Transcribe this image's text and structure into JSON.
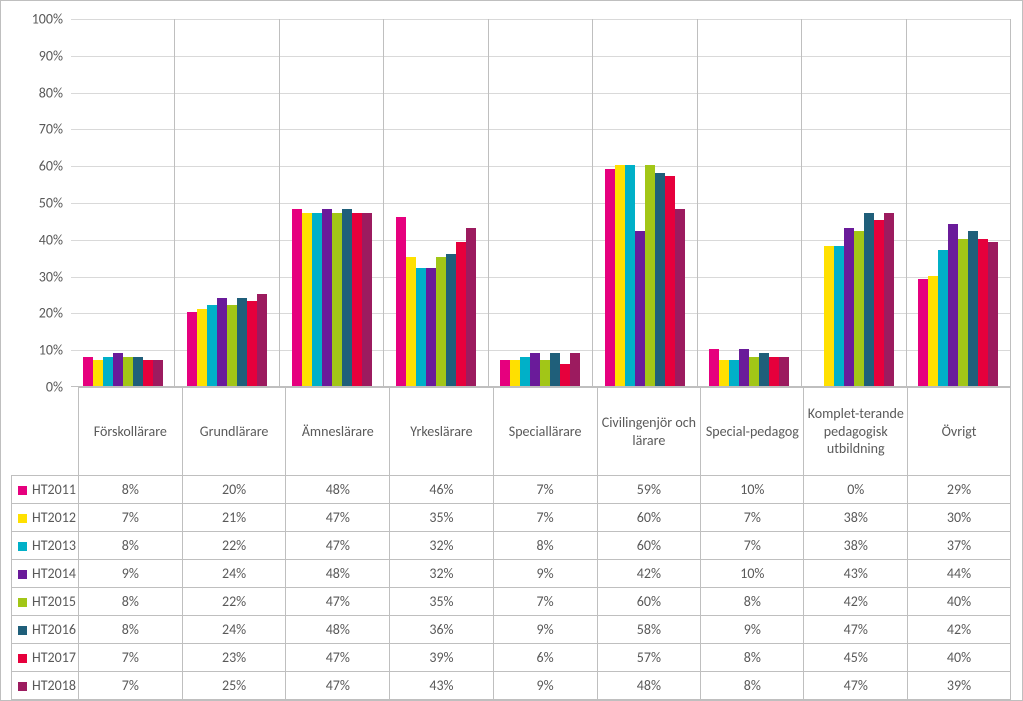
{
  "chart": {
    "type": "bar",
    "ylim": [
      0,
      100
    ],
    "ytick_step": 10,
    "ytick_suffix": "%",
    "grid_color": "#d9d9d9",
    "axis_color": "#bfbfbf",
    "background_color": "#ffffff",
    "tick_fontsize": 14,
    "tick_color": "#595959",
    "categories": [
      "Förskollärare",
      "Grundlärare",
      "Ämneslärare",
      "Yrkeslärare",
      "Speciallärare",
      "Civilingenjör och lärare",
      "Special-pedagog",
      "Komplet-terande pedagogisk utbildning",
      "Övrigt"
    ],
    "series": [
      {
        "label": "HT2011",
        "color": "#e6007e",
        "values": [
          8,
          20,
          48,
          46,
          7,
          59,
          10,
          0,
          29
        ]
      },
      {
        "label": "HT2012",
        "color": "#ffe000",
        "values": [
          7,
          21,
          47,
          35,
          7,
          60,
          7,
          38,
          30
        ]
      },
      {
        "label": "HT2013",
        "color": "#00b0c8",
        "values": [
          8,
          22,
          47,
          32,
          8,
          60,
          7,
          38,
          37
        ]
      },
      {
        "label": "HT2014",
        "color": "#6a1b9a",
        "values": [
          9,
          24,
          48,
          32,
          9,
          42,
          10,
          43,
          44
        ]
      },
      {
        "label": "HT2015",
        "color": "#a2c617",
        "values": [
          8,
          22,
          47,
          35,
          7,
          60,
          8,
          42,
          40
        ]
      },
      {
        "label": "HT2016",
        "color": "#1f5f7a",
        "values": [
          8,
          24,
          48,
          36,
          9,
          58,
          9,
          47,
          42
        ]
      },
      {
        "label": "HT2017",
        "color": "#e6003c",
        "values": [
          7,
          23,
          47,
          39,
          6,
          57,
          8,
          45,
          40
        ]
      },
      {
        "label": "HT2018",
        "color": "#9c1b5f",
        "values": [
          7,
          25,
          47,
          43,
          9,
          48,
          8,
          47,
          39
        ]
      }
    ]
  }
}
